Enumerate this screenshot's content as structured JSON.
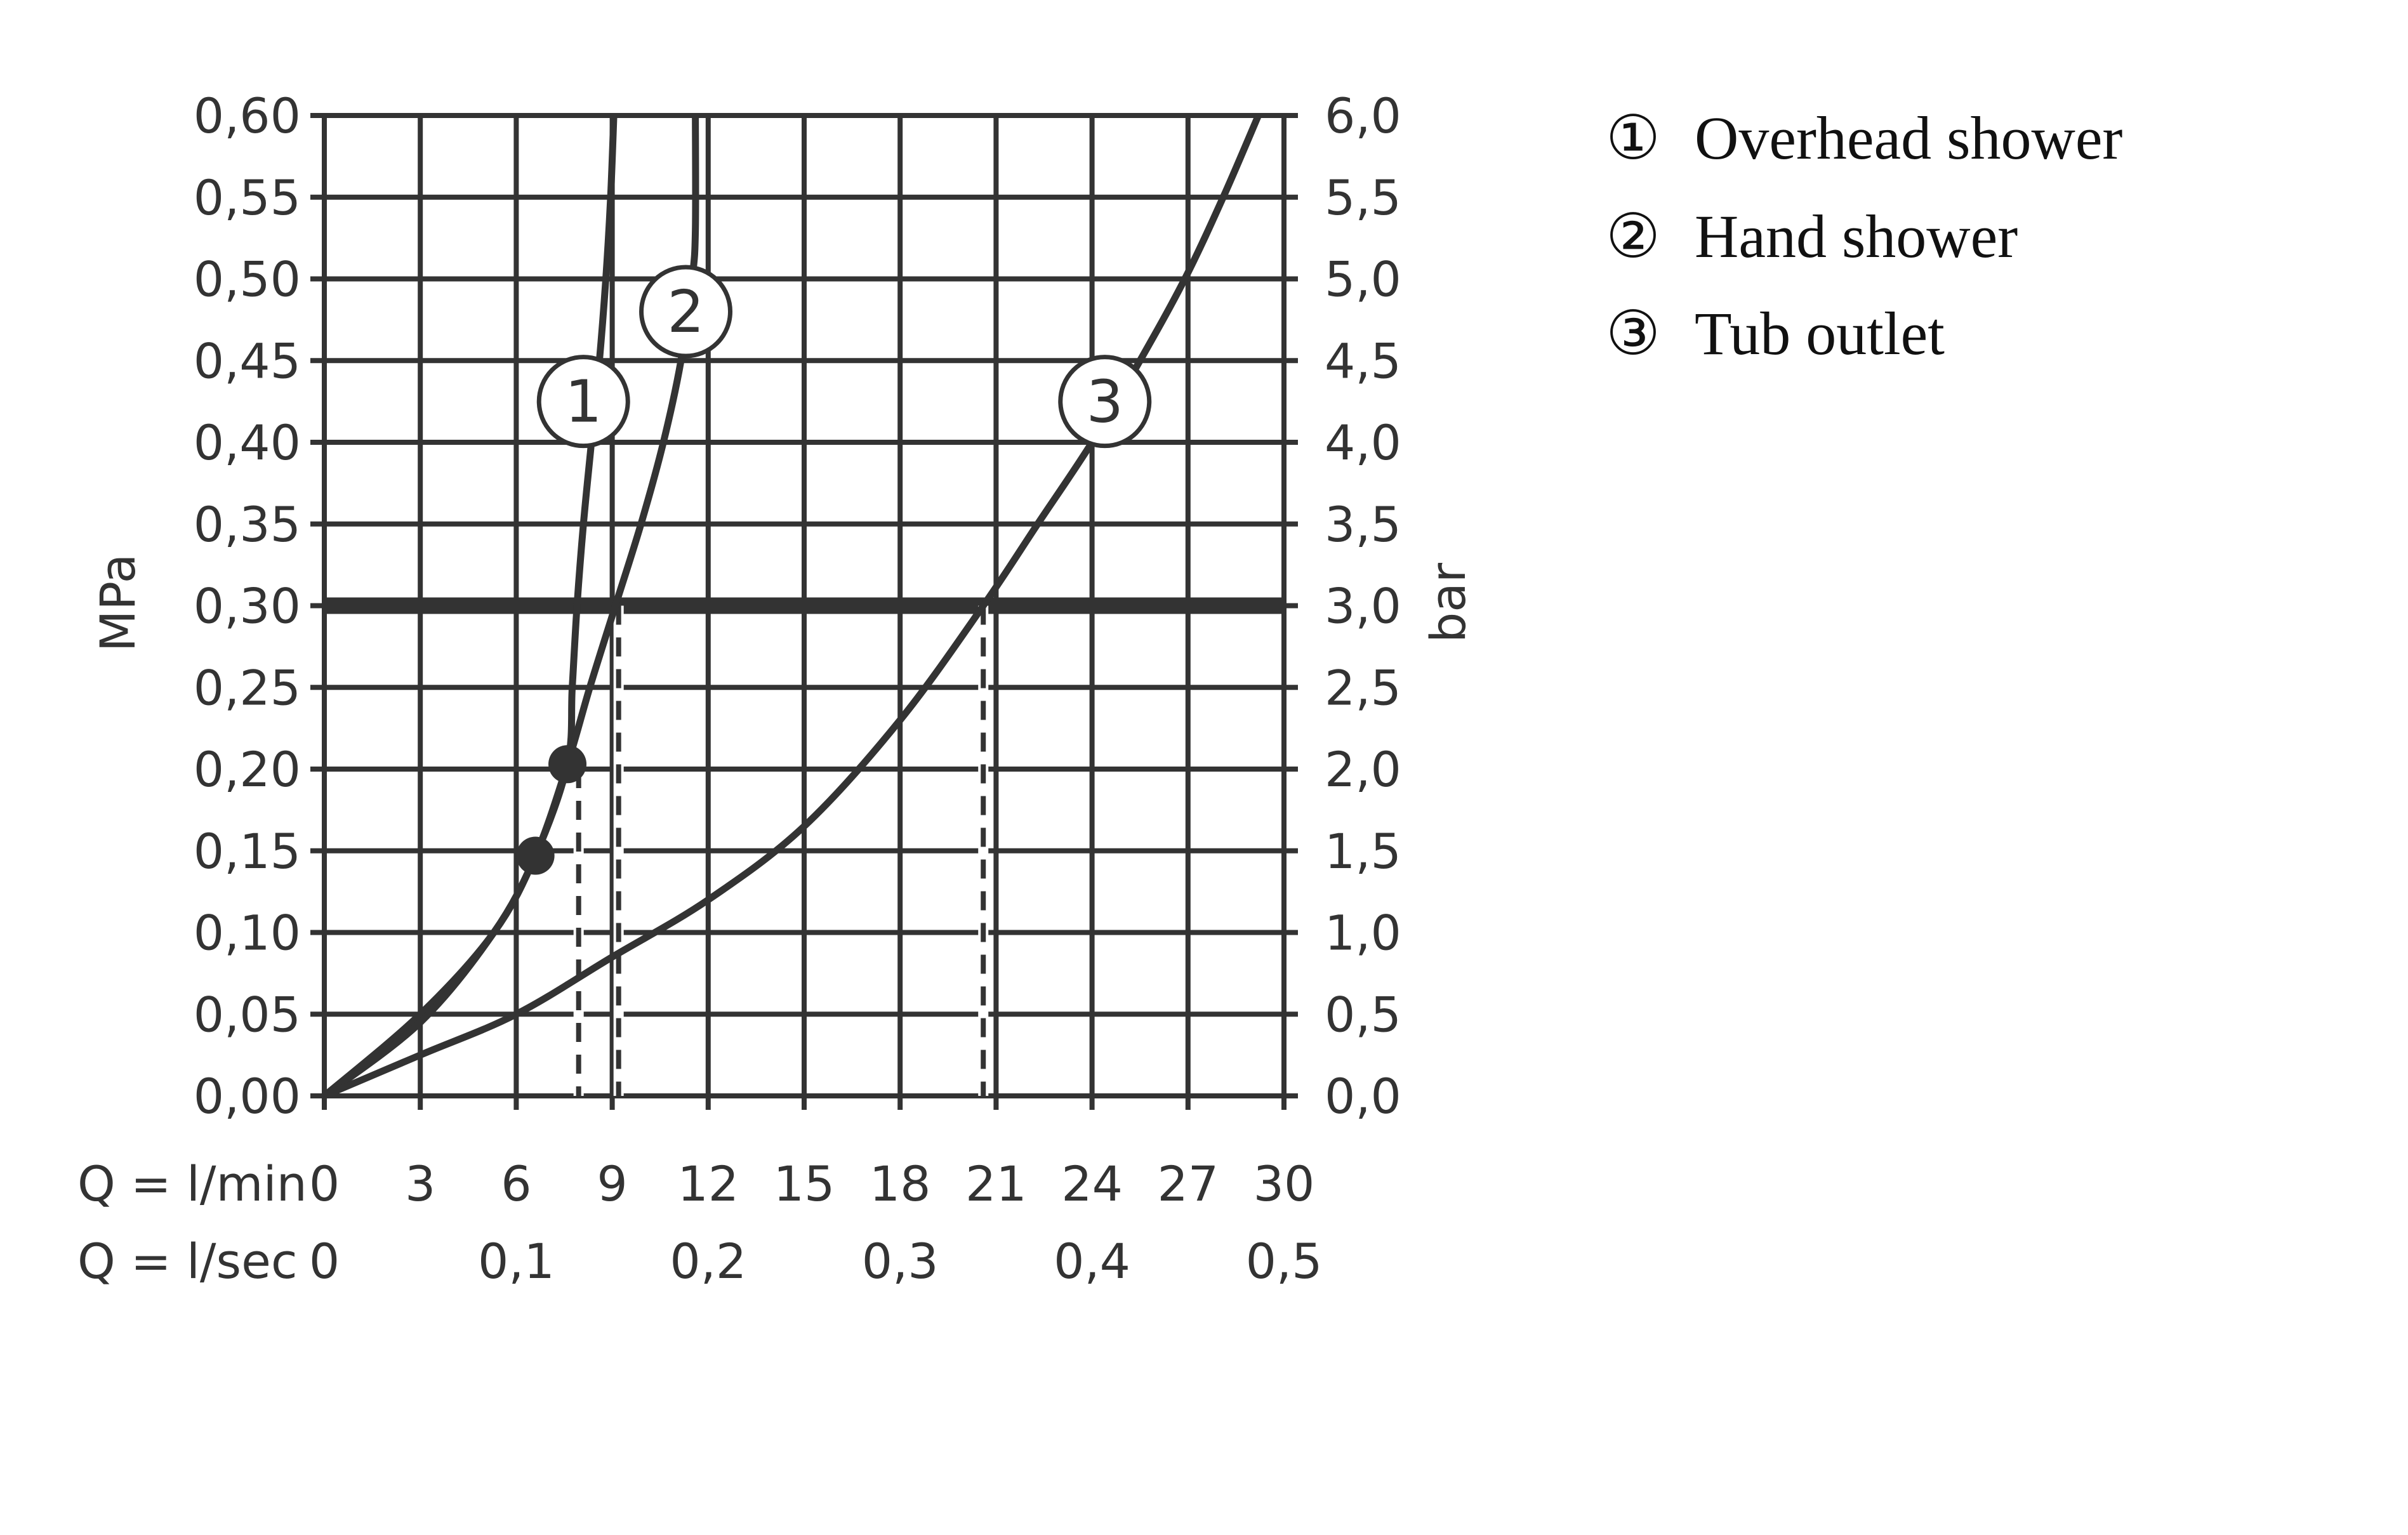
{
  "chart_data": {
    "type": "line",
    "title": "",
    "x_axis": {
      "label_primary": "Q = l/min",
      "label_secondary": "Q = l/sec",
      "range": [
        0,
        30
      ],
      "ticks_lmin": [
        "0",
        "3",
        "6",
        "9",
        "12",
        "15",
        "18",
        "21",
        "24",
        "27",
        "30"
      ],
      "ticks_lsec": [
        {
          "x": 0,
          "label": "0"
        },
        {
          "x": 6,
          "label": "0,1"
        },
        {
          "x": 12,
          "label": "0,2"
        },
        {
          "x": 18,
          "label": "0,3"
        },
        {
          "x": 24,
          "label": "0,4"
        },
        {
          "x": 30,
          "label": "0,5"
        }
      ]
    },
    "y_axis_left": {
      "label": "MPa",
      "range": [
        0,
        0.6
      ],
      "ticks": [
        "0,00",
        "0,05",
        "0,10",
        "0,15",
        "0,20",
        "0,25",
        "0,30",
        "0,35",
        "0,40",
        "0,45",
        "0,50",
        "0,55",
        "0,60"
      ]
    },
    "y_axis_right": {
      "label": "bar",
      "range": [
        0,
        6
      ],
      "ticks": [
        "0,0",
        "0,5",
        "1,0",
        "1,5",
        "2,0",
        "2,5",
        "3,0",
        "3,5",
        "4,0",
        "4,5",
        "5,0",
        "5,5",
        "6,0"
      ]
    },
    "grid": true,
    "reference_line_mpa": 0.3,
    "series": [
      {
        "marker": "1",
        "name": "Overhead shower",
        "label_at": [
          8.1,
          0.425
        ],
        "points": [
          [
            0,
            0
          ],
          [
            3,
            0.05
          ],
          [
            5.3,
            0.1
          ],
          [
            6.6,
            0.147
          ],
          [
            7.6,
            0.203
          ],
          [
            7.75,
            0.25
          ],
          [
            7.9,
            0.3
          ],
          [
            8.1,
            0.35
          ],
          [
            8.35,
            0.4
          ],
          [
            8.6,
            0.45
          ],
          [
            8.8,
            0.5
          ],
          [
            8.95,
            0.55
          ],
          [
            9.05,
            0.6
          ]
        ]
      },
      {
        "marker": "2",
        "name": "Hand shower",
        "label_at": [
          11.3,
          0.48
        ],
        "points": [
          [
            0,
            0
          ],
          [
            3,
            0.045
          ],
          [
            5.3,
            0.1
          ],
          [
            6.6,
            0.147
          ],
          [
            7.6,
            0.203
          ],
          [
            8.3,
            0.25
          ],
          [
            9.1,
            0.3
          ],
          [
            9.9,
            0.35
          ],
          [
            10.6,
            0.4
          ],
          [
            11.15,
            0.45
          ],
          [
            11.5,
            0.5
          ],
          [
            11.6,
            0.53
          ],
          [
            11.6,
            0.6
          ]
        ]
      },
      {
        "marker": "3",
        "name": "Tub outlet",
        "label_at": [
          24.4,
          0.425
        ],
        "points": [
          [
            0,
            0
          ],
          [
            3,
            0.025
          ],
          [
            6,
            0.05
          ],
          [
            9,
            0.085
          ],
          [
            12,
            0.12
          ],
          [
            15,
            0.165
          ],
          [
            18,
            0.23
          ],
          [
            20.6,
            0.3
          ],
          [
            22.3,
            0.35
          ],
          [
            24.0,
            0.4
          ],
          [
            25.5,
            0.45
          ],
          [
            26.9,
            0.5
          ],
          [
            28.1,
            0.55
          ],
          [
            29.2,
            0.6
          ]
        ]
      }
    ],
    "operating_points": [
      [
        6.6,
        0.147
      ],
      [
        7.6,
        0.203
      ]
    ],
    "dashed_drop_lines": [
      {
        "x": 7.95,
        "y": 0.2
      },
      {
        "x": 9.2,
        "y": 0.3
      },
      {
        "x": 20.6,
        "y": 0.3
      }
    ],
    "colors": {
      "ink": "#333333",
      "background": "#ffffff"
    }
  },
  "legend": [
    {
      "symbol": "①",
      "text": "Overhead shower"
    },
    {
      "symbol": "②",
      "text": "Hand shower"
    },
    {
      "symbol": "③",
      "text": "Tub outlet"
    }
  ]
}
